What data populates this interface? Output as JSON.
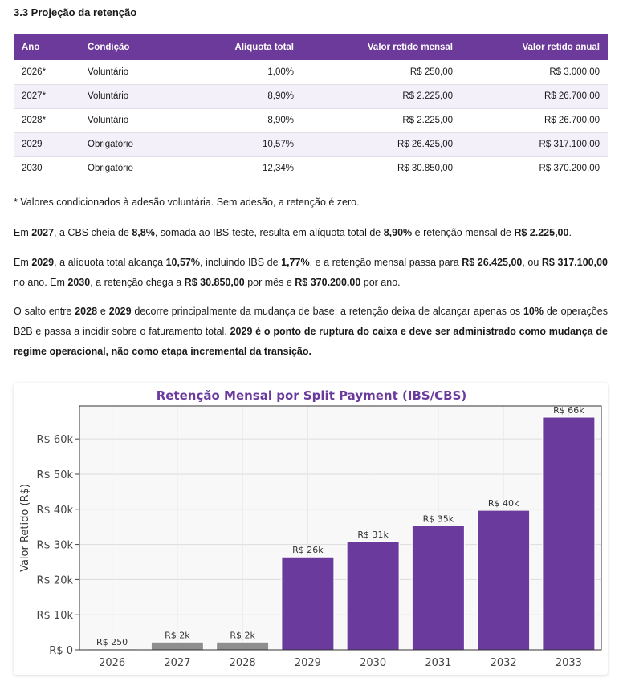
{
  "section": {
    "title": "3.3 Projeção da retenção"
  },
  "table": {
    "headers": [
      "Ano",
      "Condição",
      "Alíquota total",
      "Valor retido mensal",
      "Valor retido anual"
    ],
    "rows": [
      [
        "2026*",
        "Voluntário",
        "1,00%",
        "R$ 250,00",
        "R$ 3.000,00"
      ],
      [
        "2027*",
        "Voluntário",
        "8,90%",
        "R$ 2.225,00",
        "R$ 26.700,00"
      ],
      [
        "2028*",
        "Voluntário",
        "8,90%",
        "R$ 2.225,00",
        "R$ 26.700,00"
      ],
      [
        "2029",
        "Obrigatório",
        "10,57%",
        "R$ 26.425,00",
        "R$ 317.100,00"
      ],
      [
        "2030",
        "Obrigatório",
        "12,34%",
        "R$ 30.850,00",
        "R$ 370.200,00"
      ]
    ]
  },
  "notes": {
    "footnote": "* Valores condicionados à adesão voluntária. Sem adesão, a retenção é zero.",
    "p1": {
      "a": "Em ",
      "b": "2027",
      "c": ", a CBS cheia de ",
      "d": "8,8%",
      "e": ", somada ao IBS-teste, resulta em alíquota total de ",
      "f": "8,90%",
      "g": " e retenção mensal de ",
      "h": "R$ 2.225,00",
      "i": "."
    },
    "p2": {
      "a": "Em ",
      "b": "2029",
      "c": ", a alíquota total alcança ",
      "d": "10,57%",
      "e": ", incluindo IBS de ",
      "f": "1,77%",
      "g": ", e a retenção mensal passa para ",
      "h": "R$ 26.425,00",
      "i": ", ou ",
      "j": "R$ 317.100,00",
      "k": " no ano. Em ",
      "l": "2030",
      "m": ", a retenção chega a ",
      "n": "R$ 30.850,00",
      "o": " por mês e ",
      "p": "R$ 370.200,00",
      "q": " por ano."
    },
    "p3": {
      "a": "O salto entre ",
      "b": "2028",
      "c": " e ",
      "d": "2029",
      "e": " decorre principalmente da mudança de base: a retenção deixa de alcançar apenas os ",
      "f": "10%",
      "g": " de operações B2B e passa a incidir sobre o faturamento total. ",
      "h": "2029 é o ponto de ruptura do caixa e deve ser administrado como mudança de regime operacional, não como etapa incremental da transição."
    }
  },
  "chart_data": {
    "type": "bar",
    "title": "Retenção Mensal por Split Payment (IBS/CBS)",
    "ylabel": "Valor Retido (R$)",
    "xlabel": "",
    "categories": [
      "2026",
      "2027",
      "2028",
      "2029",
      "2030",
      "2031",
      "2032",
      "2033"
    ],
    "values": [
      250,
      2225,
      2225,
      26425,
      30850,
      35300,
      39700,
      66200
    ],
    "data_labels": [
      "R$ 250",
      "R$ 2k",
      "R$ 2k",
      "R$ 26k",
      "R$ 31k",
      "R$ 35k",
      "R$ 40k",
      "R$ 66k"
    ],
    "bar_colors": [
      "#8e8e8e",
      "#8e8e8e",
      "#8e8e8e",
      "#6a3a9c",
      "#6a3a9c",
      "#6a3a9c",
      "#6a3a9c",
      "#6a3a9c"
    ],
    "yticks": [
      0,
      10000,
      20000,
      30000,
      40000,
      50000,
      60000
    ],
    "ytick_labels": [
      "R$ 0",
      "R$ 10k",
      "R$ 20k",
      "R$ 30k",
      "R$ 40k",
      "R$ 50k",
      "R$ 60k"
    ],
    "ylim": [
      0,
      69400
    ],
    "grid": true,
    "title_color": "#6a3a9c"
  }
}
